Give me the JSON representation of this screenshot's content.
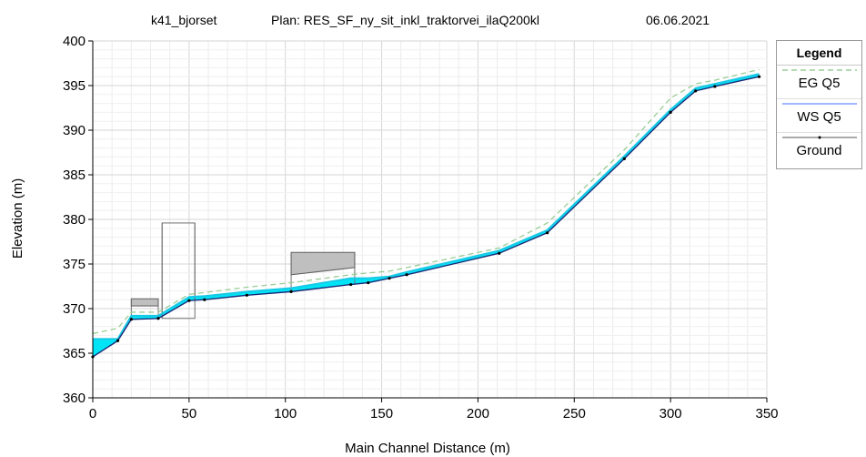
{
  "chart_data": {
    "type": "line",
    "title_parts": [
      "k41_bjorset",
      "Plan: RES_SF_ny_sit_inkl_traktorvei_ilaQ200kl",
      "06.06.2021"
    ],
    "xlabel": "Main Channel Distance (m)",
    "ylabel": "Elevation (m)",
    "xlim": [
      0,
      350
    ],
    "ylim": [
      360,
      400
    ],
    "x_ticks": [
      "0",
      "50",
      "100",
      "150",
      "200",
      "250",
      "300",
      "350"
    ],
    "y_ticks": [
      "360",
      "365",
      "370",
      "375",
      "380",
      "385",
      "390",
      "395",
      "400"
    ],
    "grid": true,
    "legend_position": "right",
    "legend_title": "Legend",
    "legend": [
      "EG  Q5",
      "WS  Q5",
      "Ground"
    ],
    "series": [
      {
        "name": "EG  Q5",
        "color": "#9acd95",
        "style": "dashed",
        "x": [
          0,
          13,
          20,
          34,
          50,
          58,
          80,
          103,
          134,
          143,
          154,
          163,
          211,
          236,
          276,
          300,
          313,
          323,
          346
        ],
        "y": [
          367.2,
          367.8,
          369.6,
          369.6,
          371.6,
          371.8,
          372.4,
          372.9,
          373.8,
          374.0,
          374.2,
          374.6,
          376.8,
          379.6,
          387.8,
          393.6,
          395.2,
          395.6,
          396.8
        ]
      },
      {
        "name": "WS  Q5",
        "color": "#00e0ef",
        "style": "solid",
        "x": [
          0,
          13,
          20,
          34,
          50,
          58,
          80,
          103,
          134,
          143,
          154,
          163,
          211,
          236,
          276,
          300,
          313,
          323,
          346
        ],
        "y": [
          366.6,
          366.6,
          369.2,
          369.2,
          371.3,
          371.4,
          371.9,
          372.3,
          373.4,
          373.4,
          373.6,
          374.1,
          376.5,
          378.8,
          387.1,
          392.3,
          394.7,
          395.2,
          396.3
        ]
      },
      {
        "name": "Ground",
        "color": "#000000",
        "style": "solid",
        "x": [
          0,
          13,
          20,
          34,
          50,
          58,
          80,
          103,
          134,
          143,
          154,
          163,
          211,
          236,
          276,
          300,
          313,
          323,
          346
        ],
        "y": [
          364.6,
          366.4,
          368.8,
          368.9,
          370.9,
          371.0,
          371.5,
          371.9,
          372.7,
          372.9,
          373.4,
          373.8,
          376.2,
          378.5,
          386.8,
          392.0,
          394.4,
          394.9,
          396.0
        ]
      }
    ],
    "structures": [
      {
        "x_from": 20,
        "x_to": 34,
        "low_chord": 370.3,
        "high_chord": 371.1
      },
      {
        "x_from": 36,
        "x_to": 53,
        "low_chord": 371.2,
        "high_chord": 379.6
      },
      {
        "x_from": 103,
        "x_to": 136,
        "low_chord": 373.8,
        "high_chord": 376.3
      }
    ],
    "colors": {
      "water_fill": "#00e5f5",
      "deck_fill": "#bfbfbf",
      "grid": "#e2e2e2"
    }
  }
}
